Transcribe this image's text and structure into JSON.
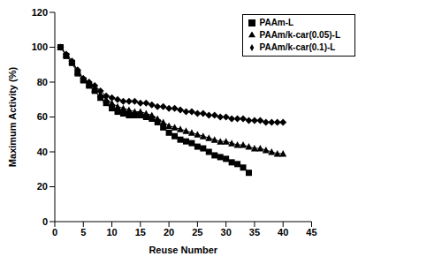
{
  "chart_data": {
    "type": "line",
    "x_label": "Reuse Number",
    "y_label": "Maximum Activity (%)",
    "x": [
      1,
      2,
      3,
      4,
      5,
      6,
      7,
      8,
      9,
      10,
      11,
      12,
      13,
      14,
      15,
      16,
      17,
      18,
      19,
      20,
      21,
      22,
      23,
      24,
      25,
      26,
      27,
      28,
      29,
      30,
      31,
      32,
      33,
      34,
      35,
      36,
      37,
      38,
      39,
      40
    ],
    "xlim": [
      0,
      45
    ],
    "xticks": [
      0,
      5,
      10,
      15,
      20,
      25,
      30,
      35,
      40,
      45
    ],
    "ylim": [
      0,
      120
    ],
    "yticks": [
      0,
      20,
      40,
      60,
      80,
      100,
      120
    ],
    "grid": false,
    "legend": "upper right",
    "series": [
      {
        "name": "PAAm-L",
        "color": "#000000",
        "marker": "square",
        "values": [
          100,
          95,
          91,
          85,
          81,
          78,
          75,
          71,
          68,
          65,
          63,
          62,
          61,
          61,
          61,
          60,
          59,
          57,
          54,
          51,
          49,
          47,
          46,
          45,
          43,
          42,
          40,
          38,
          37,
          36,
          34,
          33,
          31,
          28,
          null,
          null,
          null,
          null,
          null,
          null
        ]
      },
      {
        "name": "PAAm/k-car(0.05)-L",
        "color": "#000000",
        "marker": "triangle",
        "values": [
          100,
          96,
          92,
          86,
          82,
          79,
          76,
          73,
          70,
          68,
          66,
          65,
          64,
          63,
          63,
          62,
          61,
          59,
          57,
          55,
          54,
          53,
          52,
          51,
          50,
          49,
          48,
          47,
          46,
          46,
          45,
          44,
          44,
          43,
          42,
          42,
          41,
          40,
          39,
          39
        ]
      },
      {
        "name": "PAAm/k-car(0.1)-L",
        "color": "#000000",
        "marker": "diamond",
        "values": [
          100,
          96,
          92,
          87,
          82,
          80,
          78,
          75,
          72,
          71,
          70,
          69,
          69,
          69,
          68,
          68,
          67,
          66,
          66,
          65,
          65,
          64,
          63,
          63,
          62,
          62,
          61,
          61,
          60,
          60,
          59,
          59,
          59,
          58,
          58,
          58,
          57,
          57,
          57,
          57
        ]
      }
    ]
  }
}
